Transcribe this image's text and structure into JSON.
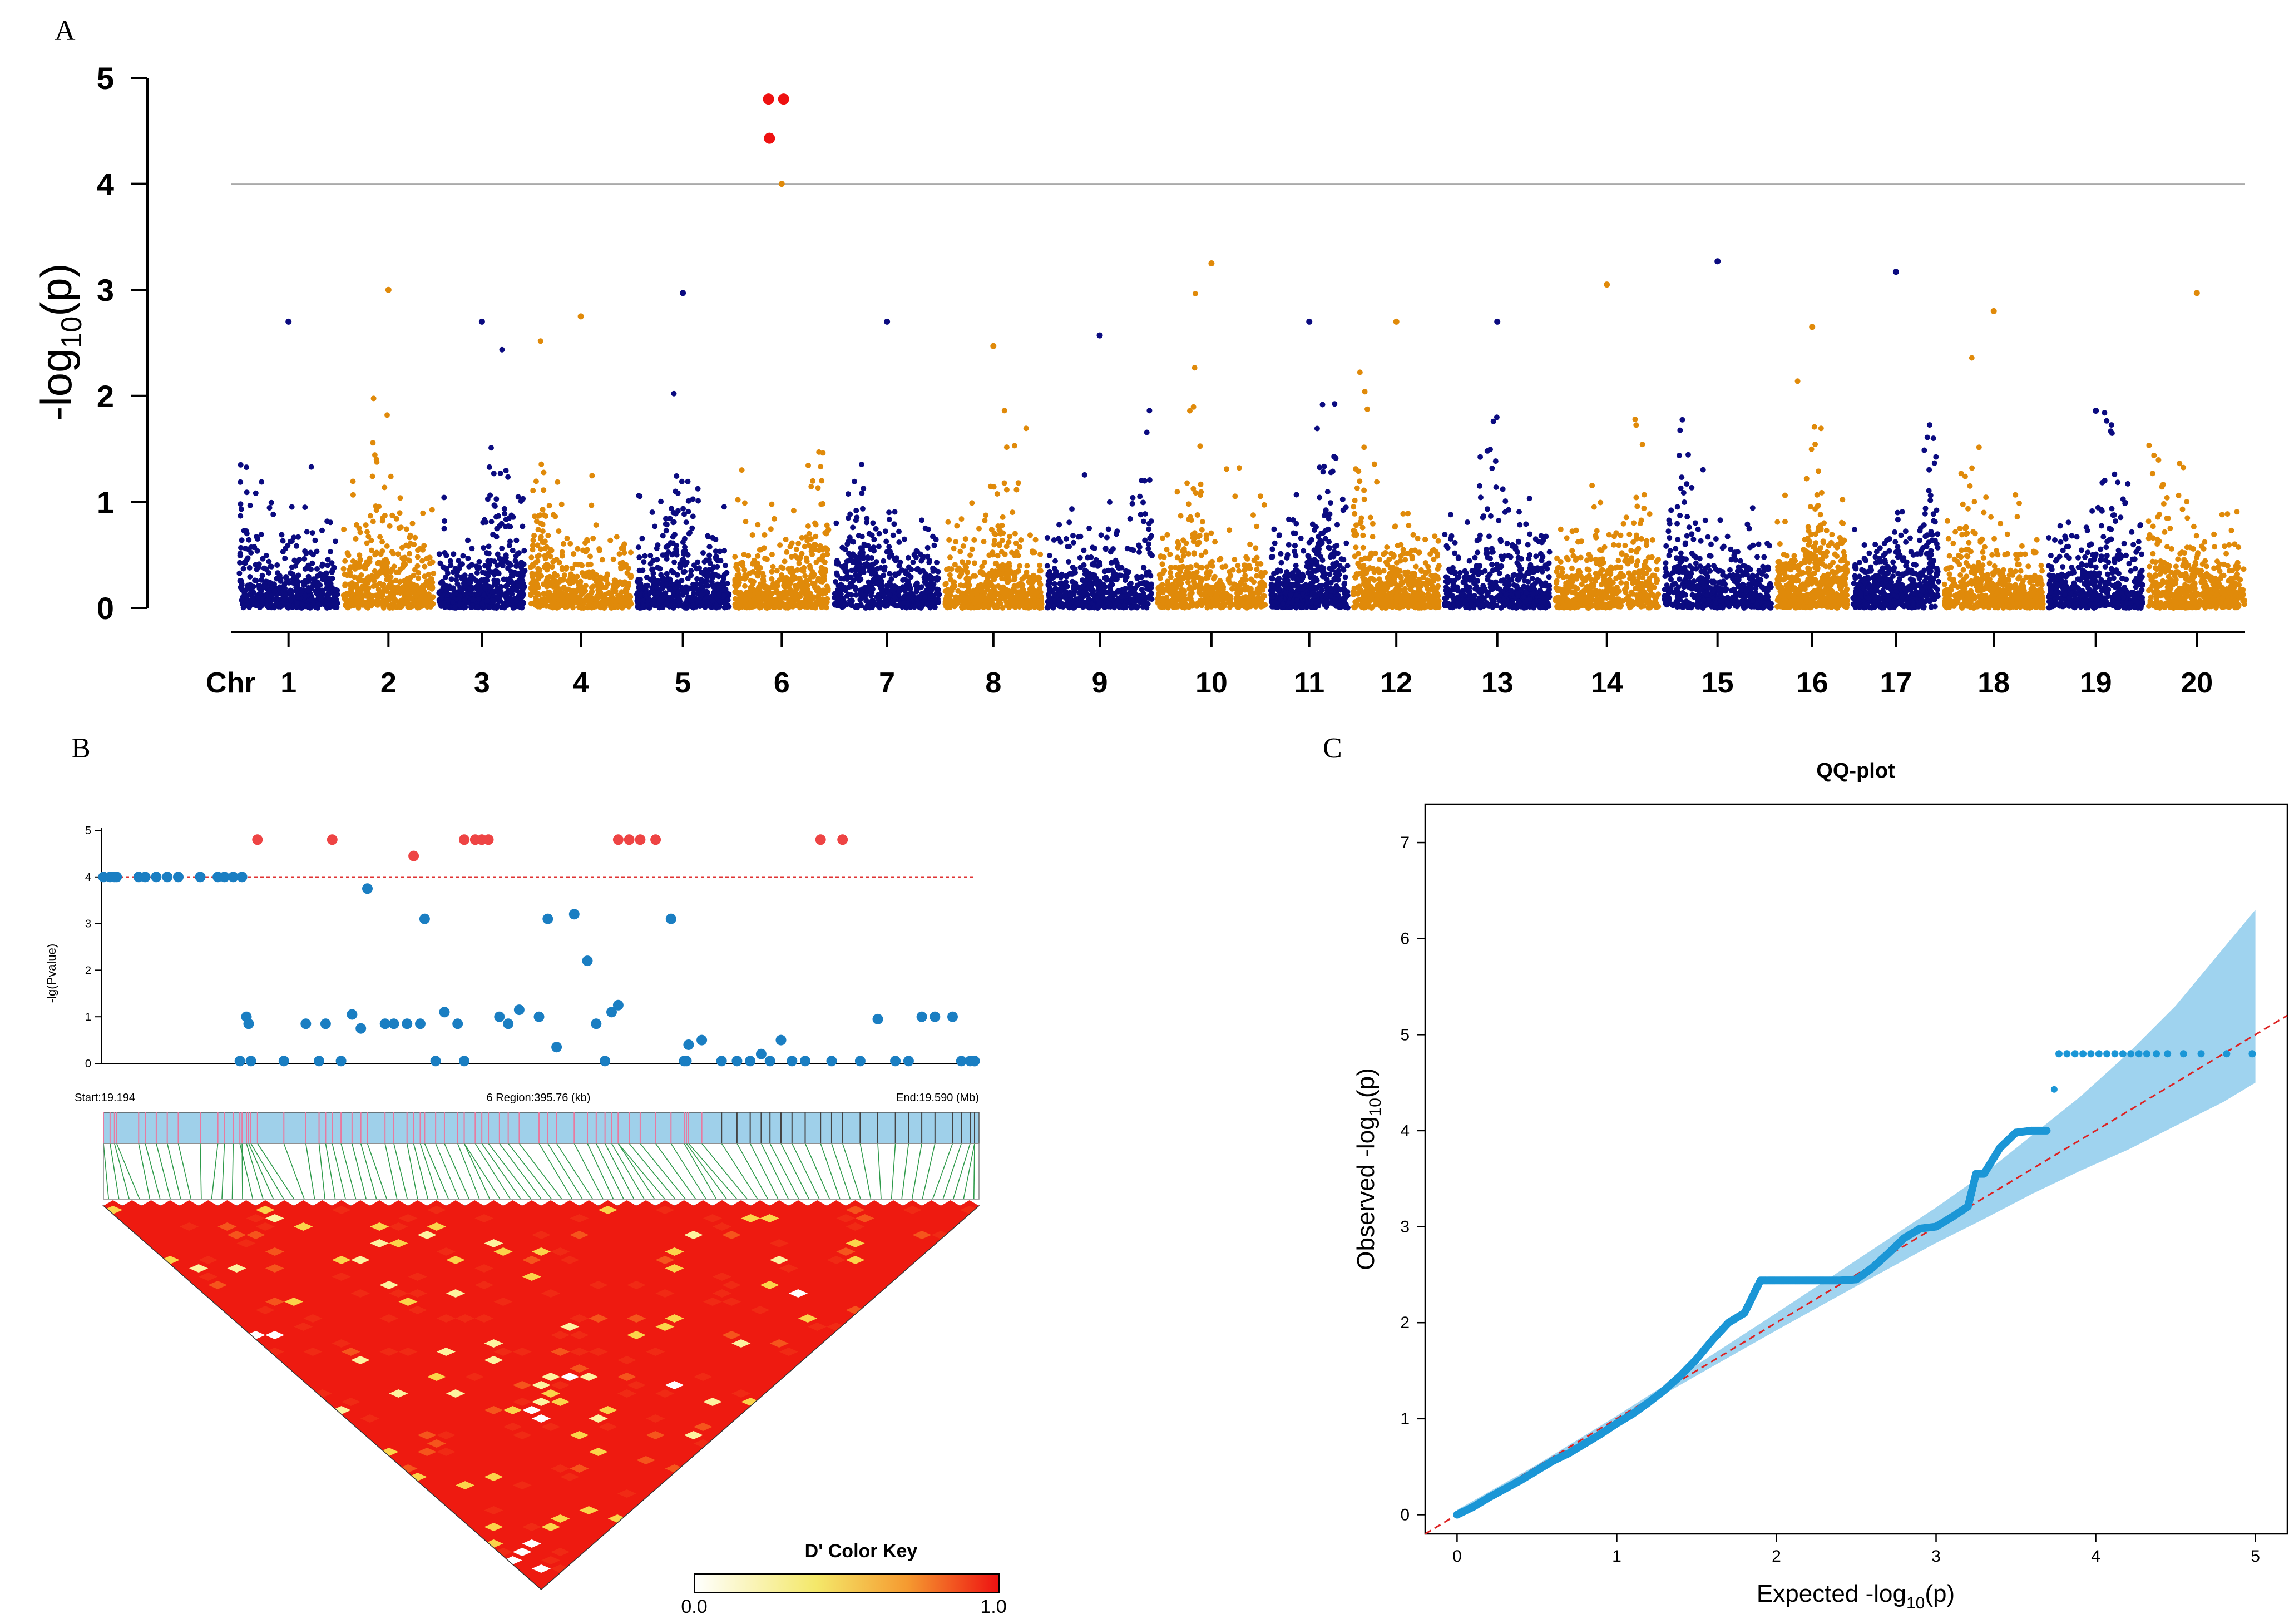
{
  "figure": {
    "panels": [
      "A",
      "B",
      "C"
    ]
  },
  "colors": {
    "dark_blue": "#0b0b80",
    "orange": "#e08a0a",
    "red": "#ee1111",
    "threshold_gray": "#aaaaaa",
    "b_blue": "#1a7ec2",
    "b_red": "#ee4444",
    "qq_blue": "#1b96d6",
    "qq_band": "#9fd3ef",
    "dline": "#dd2222",
    "ld_bar": "#9fd0ea"
  },
  "chart_data": [
    {
      "id": "A",
      "type": "scatter",
      "title": "",
      "ylabel_prefix": "-log",
      "ylabel_sub": "10",
      "ylabel_suffix": "(p)",
      "xlabel": "Chr",
      "ylim": [
        0,
        5
      ],
      "yticks": [
        "0",
        "1",
        "2",
        "3",
        "4",
        "5"
      ],
      "threshold": 4,
      "chromosomes": [
        "1",
        "2",
        "3",
        "4",
        "5",
        "6",
        "7",
        "8",
        "9",
        "10",
        "11",
        "12",
        "13",
        "14",
        "15",
        "16",
        "17",
        "18",
        "19",
        "20"
      ],
      "chrom_spans_mb": [
        46,
        42,
        40,
        47,
        43,
        44,
        49,
        45,
        49,
        50,
        36,
        40,
        49,
        48,
        50,
        33,
        40,
        46,
        44,
        45
      ],
      "chrom_peaks": [
        2.7,
        3.0,
        2.7,
        2.75,
        2.97,
        4.0,
        2.7,
        2.47,
        2.57,
        3.25,
        2.7,
        2.7,
        2.7,
        3.05,
        3.27,
        2.65,
        3.17,
        2.8,
        1.86,
        2.97
      ],
      "significant": [
        {
          "chr": "6",
          "pos_frac": 0.36,
          "value": 4.8
        },
        {
          "chr": "6",
          "pos_frac": 0.52,
          "value": 4.8
        },
        {
          "chr": "6",
          "pos_frac": 0.37,
          "value": 4.43
        }
      ]
    },
    {
      "id": "B",
      "type": "scatter",
      "ylabel": "-lg(Pvalue)",
      "yticks": [
        "0",
        "1",
        "2",
        "3",
        "4",
        "5"
      ],
      "ylim": [
        0,
        5
      ],
      "threshold": 4,
      "region_start_label": "Start:19.194",
      "region_mid_label": "6 Region:395.76 (kb)",
      "region_end_label": "End:19.590 (Mb)",
      "x_range_mb": [
        19.194,
        19.59
      ],
      "points_x": [
        19.194,
        19.197,
        19.199,
        19.2,
        19.21,
        19.213,
        19.218,
        19.223,
        19.228,
        19.238,
        19.246,
        19.249,
        19.253,
        19.257,
        19.256,
        19.259,
        19.26,
        19.261,
        19.264,
        19.276,
        19.286,
        19.292,
        19.295,
        19.298,
        19.302,
        19.307,
        19.311,
        19.314,
        19.322,
        19.326,
        19.332,
        19.335,
        19.338,
        19.34,
        19.345,
        19.349,
        19.355,
        19.358,
        19.358,
        19.363,
        19.366,
        19.369,
        19.374,
        19.378,
        19.383,
        19.392,
        19.396,
        19.4,
        19.408,
        19.414,
        19.418,
        19.422,
        19.425,
        19.428,
        19.428,
        19.433,
        19.438,
        19.445,
        19.452,
        19.458,
        19.459,
        19.46,
        19.466,
        19.475,
        19.482,
        19.488,
        19.493,
        19.497,
        19.502,
        19.507,
        19.513,
        19.52,
        19.525,
        19.53,
        19.538,
        19.546,
        19.554,
        19.56,
        19.566,
        19.572,
        19.58,
        19.584,
        19.588,
        19.59,
        19.59
      ],
      "points_y": [
        4.0,
        4.0,
        4.0,
        4.0,
        4.0,
        4.0,
        4.0,
        4.0,
        4.0,
        4.0,
        4.0,
        4.0,
        4.0,
        4.0,
        0.05,
        1.0,
        0.85,
        0.05,
        4.8,
        0.05,
        0.85,
        0.05,
        0.85,
        4.8,
        0.05,
        1.05,
        0.75,
        3.75,
        0.85,
        0.85,
        0.85,
        4.45,
        0.85,
        3.1,
        0.05,
        1.1,
        0.85,
        4.8,
        0.05,
        4.8,
        4.8,
        4.8,
        1.0,
        0.85,
        1.15,
        1.0,
        3.1,
        0.35,
        3.2,
        2.2,
        0.85,
        0.05,
        1.1,
        1.25,
        4.8,
        4.8,
        4.8,
        4.8,
        3.1,
        0.05,
        0.05,
        0.4,
        0.5,
        0.05,
        0.05,
        0.05,
        0.2,
        0.05,
        0.5,
        0.05,
        0.05,
        4.8,
        0.05,
        4.8,
        0.05,
        0.95,
        0.05,
        0.05,
        1.0,
        1.0,
        1.0,
        0.05,
        0.05,
        0.05,
        0.05
      ],
      "colorkey_title": "D' Color Key",
      "colorkey_min": "0.0",
      "colorkey_max": "1.0"
    },
    {
      "id": "C",
      "type": "scatter",
      "title": "QQ-plot",
      "xlabel_prefix": "Expected  -log",
      "xlabel_sub": "10",
      "xlabel_suffix": "(p)",
      "ylabel_prefix": "Observed  -log",
      "ylabel_sub": "10",
      "ylabel_suffix": "(p)",
      "xlim": [
        -0.2,
        5.2
      ],
      "ylim": [
        -0.2,
        7.4
      ],
      "xticks": [
        "0",
        "1",
        "2",
        "3",
        "4",
        "5"
      ],
      "yticks": [
        "0",
        "1",
        "2",
        "3",
        "4",
        "5",
        "6",
        "7"
      ],
      "curve_x": [
        0.0,
        0.1,
        0.2,
        0.3,
        0.4,
        0.5,
        0.6,
        0.7,
        0.8,
        0.9,
        1.0,
        1.1,
        1.2,
        1.3,
        1.4,
        1.5,
        1.6,
        1.7,
        1.8,
        1.9,
        2.0,
        2.1,
        2.2,
        2.3,
        2.4,
        2.5,
        2.6,
        2.7,
        2.8,
        2.9,
        3.0,
        3.1,
        3.2,
        3.25,
        3.3,
        3.4,
        3.5,
        3.6,
        3.7
      ],
      "curve_y": [
        0.0,
        0.08,
        0.18,
        0.27,
        0.36,
        0.46,
        0.56,
        0.64,
        0.74,
        0.84,
        0.95,
        1.05,
        1.17,
        1.3,
        1.45,
        1.62,
        1.82,
        2.0,
        2.1,
        2.44,
        2.44,
        2.44,
        2.44,
        2.44,
        2.44,
        2.45,
        2.57,
        2.72,
        2.88,
        2.98,
        3.0,
        3.1,
        3.21,
        3.55,
        3.55,
        3.82,
        3.98,
        4.0,
        4.0
      ],
      "top_points_x": [
        3.77,
        3.82,
        3.87,
        3.92,
        3.97,
        4.02,
        4.07,
        4.12,
        4.17,
        4.22,
        4.27,
        4.32,
        4.38,
        4.45,
        4.55,
        4.66,
        4.82,
        4.98
      ],
      "top_points_y": [
        4.8,
        4.8,
        4.8,
        4.8,
        4.8,
        4.8,
        4.8,
        4.8,
        4.8,
        4.8,
        4.8,
        4.8,
        4.8,
        4.8,
        4.8,
        4.8,
        4.8,
        4.8
      ],
      "extra_points_x": [
        3.74
      ],
      "extra_points_y": [
        4.43
      ],
      "band_x": [
        0.0,
        0.5,
        1.0,
        1.5,
        2.0,
        2.5,
        3.0,
        3.3,
        3.6,
        3.9,
        4.2,
        4.5,
        4.8,
        5.0
      ],
      "band_lo": [
        0.0,
        0.48,
        0.97,
        1.45,
        1.92,
        2.38,
        2.83,
        3.08,
        3.34,
        3.58,
        3.8,
        4.05,
        4.3,
        4.5
      ],
      "band_hi": [
        0.05,
        0.52,
        1.03,
        1.56,
        2.1,
        2.65,
        3.2,
        3.55,
        3.95,
        4.35,
        4.8,
        5.3,
        5.9,
        6.3
      ]
    }
  ]
}
